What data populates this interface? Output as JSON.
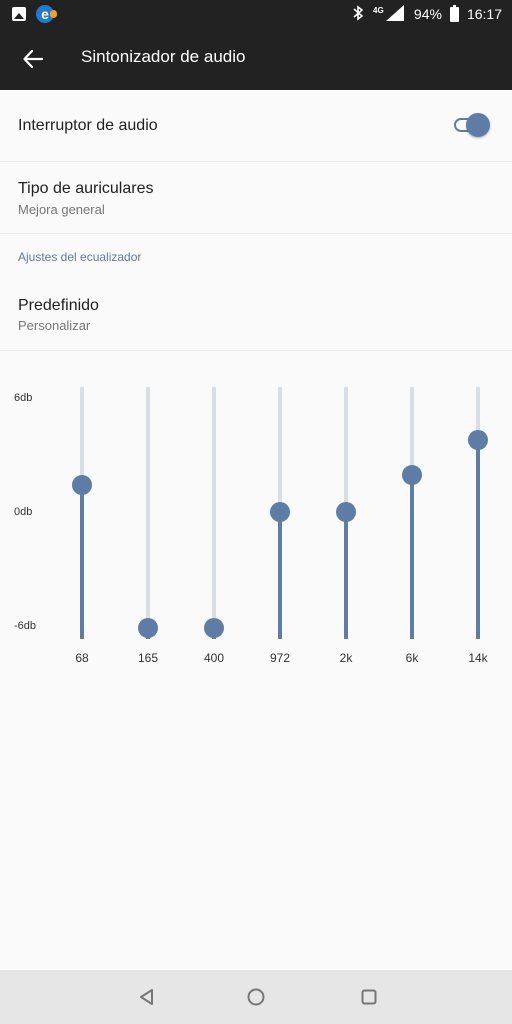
{
  "status_bar": {
    "left_icons": [
      "gallery-icon",
      "browser-icon"
    ],
    "network": "4G",
    "battery_percent": "94%",
    "time": "16:17"
  },
  "app_bar": {
    "back_icon": "arrow-left-icon",
    "title": "Sintonizador de audio"
  },
  "settings": {
    "audio_switch": {
      "label": "Interruptor de audio",
      "enabled": true
    },
    "headphone_type": {
      "label": "Tipo de auriculares",
      "value": "Mejora general"
    },
    "eq_section_header": "Ajustes del ecualizador",
    "preset": {
      "label": "Predefinido",
      "value": "Personalizar"
    }
  },
  "equalizer": {
    "db_labels": {
      "top": "6db",
      "mid": "0db",
      "bottom": "-6db"
    },
    "range_db": [
      -6,
      6
    ],
    "bands": [
      {
        "freq": "68",
        "gain_db": 1.4
      },
      {
        "freq": "165",
        "gain_db": -6
      },
      {
        "freq": "400",
        "gain_db": -6
      },
      {
        "freq": "972",
        "gain_db": 0
      },
      {
        "freq": "2k",
        "gain_db": 0
      },
      {
        "freq": "6k",
        "gain_db": 1.9
      },
      {
        "freq": "14k",
        "gain_db": 3.7
      }
    ]
  },
  "nav_bar": {
    "buttons": [
      "back-triangle-icon",
      "home-circle-icon",
      "recents-square-icon"
    ]
  },
  "colors": {
    "accent": "#5d7da6",
    "rail": "#d9dee6",
    "app_bar": "#222222",
    "section_header": "#5b7aa5"
  }
}
